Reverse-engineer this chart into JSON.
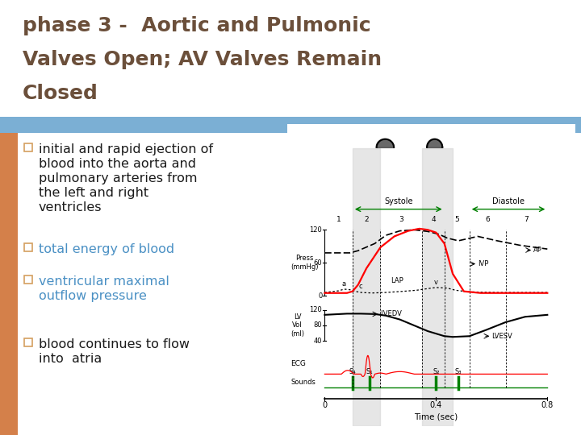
{
  "title_line1": "phase 3 -  Aortic and Pulmonic",
  "title_line2": "Valves Open; AV Valves Remain",
  "title_line3": "Closed",
  "title_color": "#6b4f3a",
  "header_bar_color": "#7bafd4",
  "left_bar_color": "#d4804a",
  "bullet_sq_color": "#d4a060",
  "background_color": "#ffffff",
  "text_dark": "#1a1a1a",
  "text_blue": "#4a90c4",
  "bullet_items": [
    {
      "text": "initial and rapid ejection of\nblood into the aorta and\npulmonary arteries from\nthe left and right\nventricles",
      "color": "#1a1a1a"
    },
    {
      "text": "total energy of blood",
      "color": "#4a90c4"
    },
    {
      "text": "ventricular maximal\noutflow pressure",
      "color": "#4a90c4"
    },
    {
      "text": "blood continues to flow\ninto  atria",
      "color": "#1a1a1a"
    }
  ]
}
